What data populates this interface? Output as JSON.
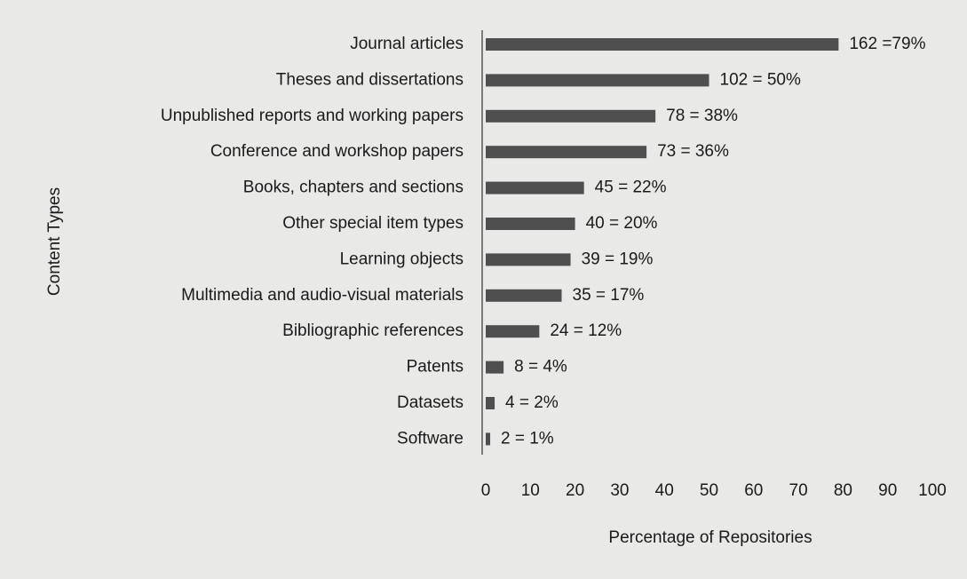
{
  "chart_data": {
    "type": "bar",
    "orientation": "horizontal",
    "xlabel": "Percentage of Repositories",
    "ylabel": "Content Types",
    "categories": [
      "Journal articles",
      "Theses and dissertations",
      "Unpublished reports and working papers",
      "Conference and workshop papers",
      "Books, chapters and sections",
      "Other special item types",
      "Learning objects",
      "Multimedia and audio-visual materials",
      "Bibliographic references",
      "Patents",
      "Datasets",
      "Software"
    ],
    "values": [
      79,
      50,
      38,
      36,
      22,
      20,
      19,
      17,
      12,
      4,
      2,
      1
    ],
    "value_labels": [
      "162 =79%",
      "102 = 50%",
      "78 = 38%",
      "73 = 36%",
      "45 = 22%",
      "40 = 20%",
      "39 = 19%",
      "35 = 17%",
      "24 = 12%",
      "8 = 4%",
      "4 = 2%",
      "2 = 1%"
    ],
    "color": "#4f4f4f",
    "xlim": [
      0,
      100
    ],
    "xticks": [
      0,
      10,
      20,
      30,
      40,
      50,
      60,
      70,
      80,
      90,
      100
    ],
    "grid": false
  }
}
